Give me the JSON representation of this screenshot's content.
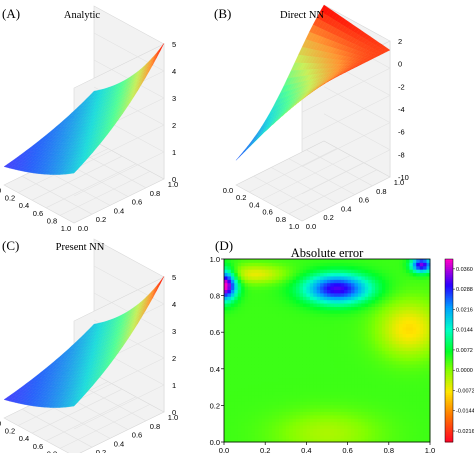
{
  "chart_data": [
    {
      "panel_label": "(A)",
      "title": "Analytic",
      "type": "surface3d",
      "x_ticks": [
        "0.0",
        "0.2",
        "0.4",
        "0.6",
        "0.8",
        "1.0"
      ],
      "y_ticks": [
        "0.0",
        "0.2",
        "0.4",
        "0.6",
        "0.8",
        "1.0"
      ],
      "z_ticks": [
        "0",
        "1",
        "2",
        "3",
        "4",
        "5"
      ],
      "zlim": [
        0,
        5
      ],
      "colormap": "rainbow"
    },
    {
      "panel_label": "(B)",
      "title": "Direct NN",
      "type": "surface3d",
      "x_ticks": [
        "0.0",
        "0.2",
        "0.4",
        "0.6",
        "0.8",
        "1.0"
      ],
      "y_ticks": [
        "0.0",
        "0.2",
        "0.4",
        "0.6",
        "0.8",
        "1.0"
      ],
      "z_ticks": [
        "2",
        "0",
        "-2",
        "-4",
        "-6",
        "-8",
        "-10"
      ],
      "zlim": [
        -10,
        2
      ],
      "colormap": "rainbow"
    },
    {
      "panel_label": "(C)",
      "title": "Present NN",
      "type": "surface3d",
      "x_ticks": [
        "0.0",
        "0.2",
        "0.4",
        "0.6",
        "0.8",
        "1.0"
      ],
      "y_ticks": [
        "0.0",
        "0.2",
        "0.4",
        "0.6",
        "0.8",
        "1.0"
      ],
      "z_ticks": [
        "0",
        "1",
        "2",
        "3",
        "4",
        "5"
      ],
      "zlim": [
        0,
        5
      ],
      "colormap": "rainbow"
    },
    {
      "panel_label": "(D)",
      "title": "Absolute error",
      "type": "heatmap",
      "x_ticks": [
        "0.0",
        "0.2",
        "0.4",
        "0.6",
        "0.8",
        "1.0"
      ],
      "y_ticks": [
        "0.0",
        "0.2",
        "0.4",
        "0.6",
        "0.8",
        "1.0"
      ],
      "xlim": [
        0,
        1
      ],
      "ylim": [
        0,
        1
      ],
      "colorbar_ticks": [
        "0.0360",
        "0.0288",
        "0.0216",
        "0.0144",
        "0.0072",
        "0.0000",
        "-0.00720",
        "-0.0144",
        "-0.0216"
      ],
      "colorbar_range": [
        -0.0255,
        0.0395
      ],
      "colormap": "gist_rainbow"
    }
  ]
}
